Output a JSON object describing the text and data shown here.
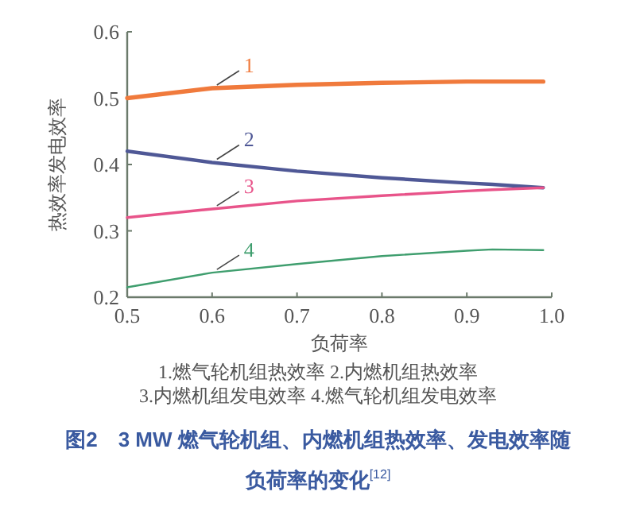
{
  "chart_data": {
    "type": "line",
    "title": "图2　3 MW 燃气轮机组、内燃机组热效率、发电效率随负荷率的变化$^{[12]}$",
    "xlabel": "负荷率",
    "ylabel": "热效率发电效率",
    "x": [
      0.5,
      0.6,
      0.7,
      0.8,
      0.9,
      0.93,
      0.99
    ],
    "series": [
      {
        "name": "1",
        "color": "#f07a3c",
        "values": [
          0.5,
          0.515,
          0.52,
          0.523,
          0.525,
          0.525,
          0.525
        ]
      },
      {
        "name": "2",
        "color": "#4f5896",
        "values": [
          0.42,
          0.403,
          0.39,
          0.38,
          0.372,
          0.37,
          0.365
        ]
      },
      {
        "name": "3",
        "color": "#e8548a",
        "values": [
          0.32,
          0.333,
          0.345,
          0.353,
          0.36,
          0.362,
          0.365
        ]
      },
      {
        "name": "4",
        "color": "#3f9e6e",
        "values": [
          0.215,
          0.237,
          0.25,
          0.262,
          0.27,
          0.272,
          0.271
        ]
      }
    ],
    "xlim": [
      0.5,
      1.0
    ],
    "ylim": [
      0.2,
      0.6
    ],
    "xticks": [
      0.5,
      0.6,
      0.7,
      0.8,
      0.9,
      {
        "value": 1,
        "label": "1.0"
      }
    ],
    "yticks": [
      0.2,
      0.3,
      0.4,
      0.5,
      0.6
    ],
    "grid": false,
    "legend": false,
    "marker": "none",
    "line_style": "solid",
    "annotations": [
      "1.燃气轮机组热效率 2.内燃机组热效率",
      "3.内燃机组发电效率 4.燃气轮机组发电效率"
    ]
  }
}
